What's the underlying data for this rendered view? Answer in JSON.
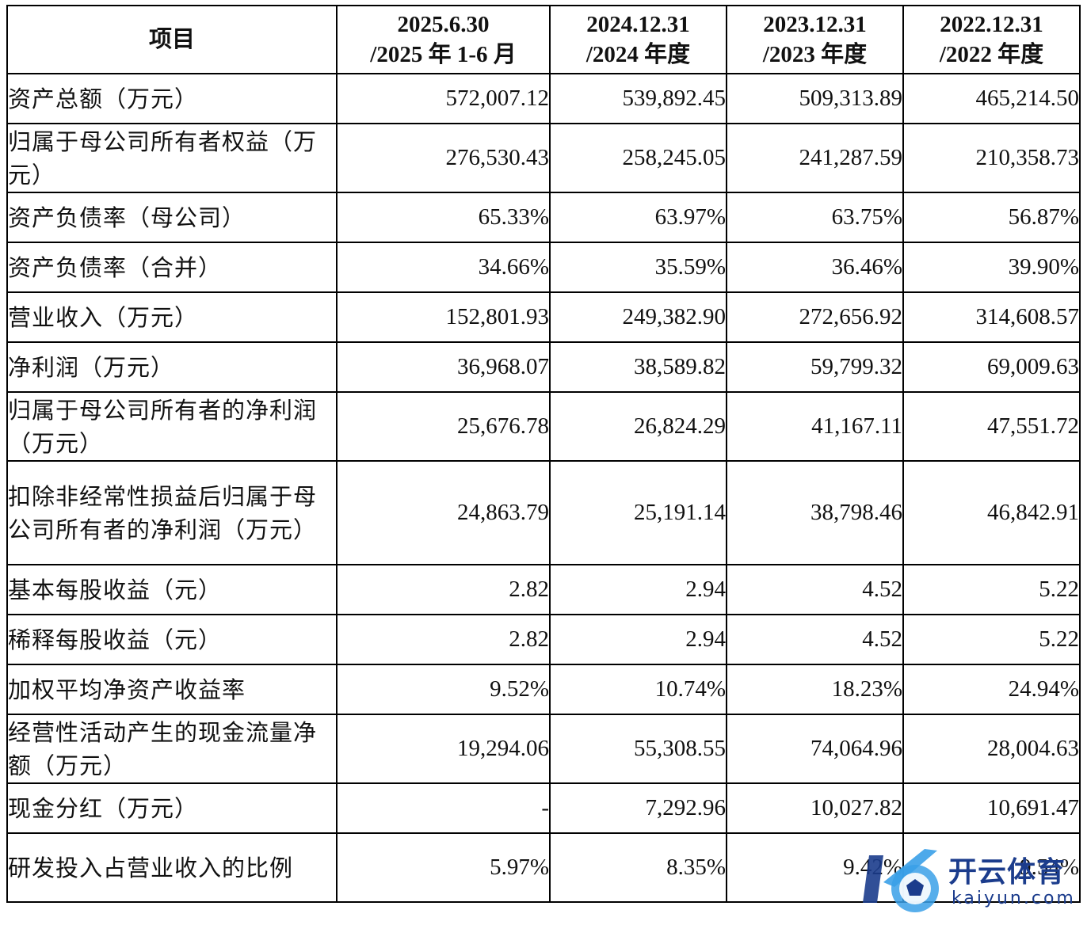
{
  "table": {
    "headers": [
      {
        "line1": "项目",
        "line2": ""
      },
      {
        "line1": "2025.6.30",
        "line2": "/2025 年 1-6 月"
      },
      {
        "line1": "2024.12.31",
        "line2": "/2024 年度"
      },
      {
        "line1": "2023.12.31",
        "line2": "/2023 年度"
      },
      {
        "line1": "2022.12.31",
        "line2": "/2022 年度"
      }
    ],
    "rows": [
      {
        "label": "资产总额（万元）",
        "values": [
          "572,007.12",
          "539,892.45",
          "509,313.89",
          "465,214.50"
        ]
      },
      {
        "label": "归属于母公司所有者权益（万元）",
        "values": [
          "276,530.43",
          "258,245.05",
          "241,287.59",
          "210,358.73"
        ]
      },
      {
        "label": "资产负债率（母公司）",
        "values": [
          "65.33%",
          "63.97%",
          "63.75%",
          "56.87%"
        ]
      },
      {
        "label": "资产负债率（合并）",
        "values": [
          "34.66%",
          "35.59%",
          "36.46%",
          "39.90%"
        ]
      },
      {
        "label": "营业收入（万元）",
        "values": [
          "152,801.93",
          "249,382.90",
          "272,656.92",
          "314,608.57"
        ]
      },
      {
        "label": "净利润（万元）",
        "values": [
          "36,968.07",
          "38,589.82",
          "59,799.32",
          "69,009.63"
        ]
      },
      {
        "label": "归属于母公司所有者的净利润（万元）",
        "values": [
          "25,676.78",
          "26,824.29",
          "41,167.11",
          "47,551.72"
        ]
      },
      {
        "label": "扣除非经常性损益后归属于母公司所有者的净利润（万元）",
        "values": [
          "24,863.79",
          "25,191.14",
          "38,798.46",
          "46,842.91"
        ]
      },
      {
        "label": "基本每股收益（元）",
        "values": [
          "2.82",
          "2.94",
          "4.52",
          "5.22"
        ]
      },
      {
        "label": "稀释每股收益（元）",
        "values": [
          "2.82",
          "2.94",
          "4.52",
          "5.22"
        ]
      },
      {
        "label": "加权平均净资产收益率",
        "values": [
          "9.52%",
          "10.74%",
          "18.23%",
          "24.94%"
        ]
      },
      {
        "label": "经营性活动产生的现金流量净额（万元）",
        "values": [
          "19,294.06",
          "55,308.55",
          "74,064.96",
          "28,004.63"
        ]
      },
      {
        "label": "现金分红（万元）",
        "values": [
          "-",
          "7,292.96",
          "10,027.82",
          "10,691.47"
        ]
      },
      {
        "label": "研发投入占营业收入的比例",
        "values": [
          "5.97%",
          "8.35%",
          "9.42%",
          "9.54%"
        ]
      }
    ]
  },
  "watermark": {
    "title": "开云体育",
    "subtitle": "kaiyun.com",
    "colors": {
      "primary": "#1b3c8c",
      "accent": "#3aa0e8"
    }
  }
}
